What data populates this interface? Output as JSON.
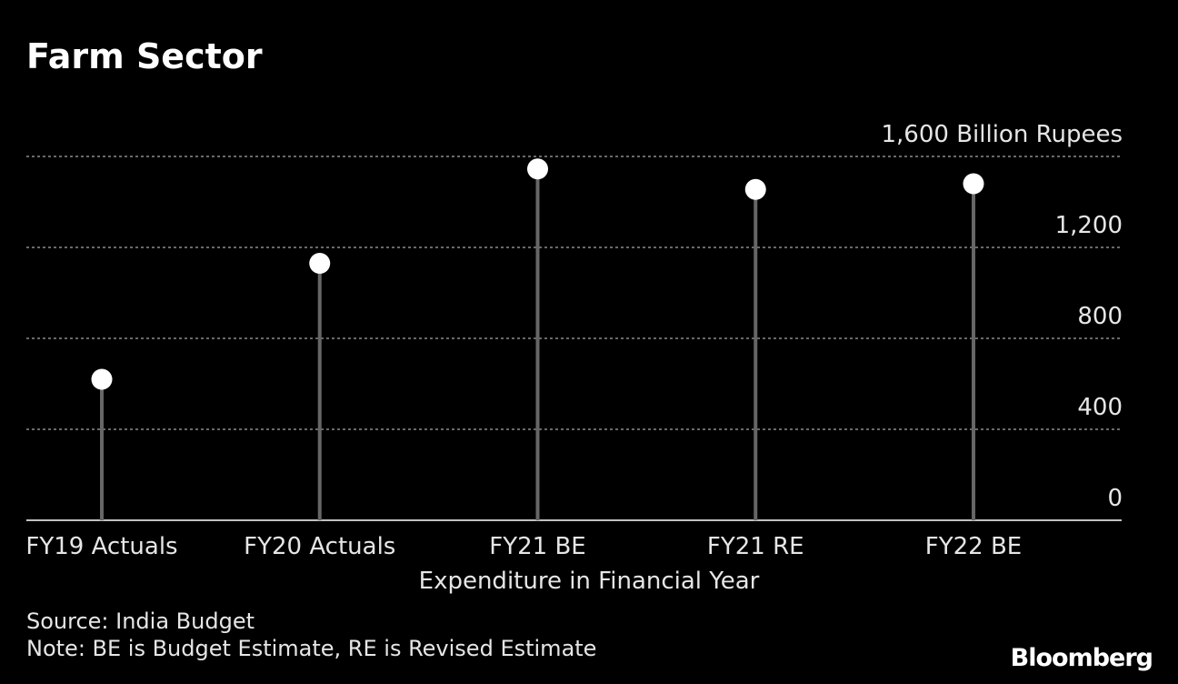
{
  "chart_data": {
    "type": "lollipop",
    "title": "Farm Sector",
    "xlabel": "Expenditure in Financial Year",
    "ylabel_unit": "Billion Rupees",
    "categories": [
      "FY19 Actuals",
      "FY20 Actuals",
      "FY21 BE",
      "FY21 RE",
      "FY22 BE"
    ],
    "values": [
      620,
      1130,
      1545,
      1455,
      1480
    ],
    "ylim": [
      0,
      1600
    ],
    "yticks": [
      0,
      400,
      800,
      1200,
      1600
    ],
    "ytick_labels": [
      "0",
      "400",
      "800",
      "1,200",
      "1,600 Billion Rupees"
    ],
    "grid": true,
    "colors": {
      "background": "#000000",
      "stem": "#666666",
      "marker": "#ffffff",
      "grid": "#8c8c8c",
      "text": "#e6e6e6"
    }
  },
  "footer": {
    "source": "Source: India Budget",
    "note": "Note: BE is Budget Estimate, RE is Revised Estimate"
  },
  "brand": "Bloomberg"
}
